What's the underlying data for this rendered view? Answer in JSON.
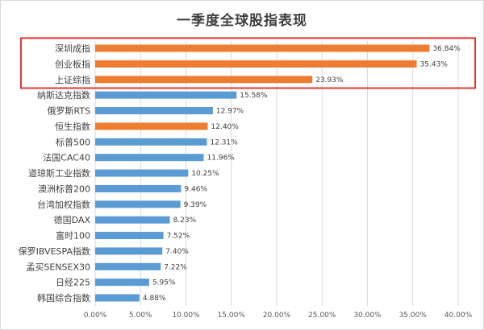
{
  "chart_data": {
    "type": "bar",
    "orientation": "horizontal",
    "title": "一季度全球股指表现",
    "categories": [
      "深圳成指",
      "创业板指",
      "上证综指",
      "纳斯达克指数",
      "俄罗斯RTS",
      "恒生指数",
      "标普500",
      "法国CAC40",
      "道琼斯工业指数",
      "澳洲标普200",
      "台湾加权指数",
      "德国DAX",
      "富时100",
      "保罗IBVESPA指数",
      "孟买SENSEX30",
      "日经225",
      "韩国综合指数"
    ],
    "values": [
      36.84,
      35.43,
      23.93,
      15.58,
      12.97,
      12.4,
      12.31,
      11.96,
      10.25,
      9.46,
      9.39,
      8.23,
      7.52,
      7.4,
      7.22,
      5.95,
      4.88
    ],
    "value_labels": [
      "36.84%",
      "35.43%",
      "23.93%",
      "15.58%",
      "12.97%",
      "12.40%",
      "12.31%",
      "11.96%",
      "10.25%",
      "9.46%",
      "9.39%",
      "8.23%",
      "7.52%",
      "7.40%",
      "7.22%",
      "5.95%",
      "4.88%"
    ],
    "highlight_color": "#ED7D31",
    "base_color": "#5B9BD5",
    "highlighted": [
      "深圳成指",
      "创业板指",
      "上证综指",
      "恒生指数"
    ],
    "xlim": [
      0,
      40
    ],
    "x_ticks": [
      0,
      5,
      10,
      15,
      20,
      25,
      30,
      35,
      40
    ],
    "x_tick_labels": [
      "0.00%",
      "5.00%",
      "10.00%",
      "15.00%",
      "20.00%",
      "25.00%",
      "30.00%",
      "35.00%",
      "40.00%"
    ],
    "grid": true,
    "legend": "none",
    "annotation_box": {
      "label": "top-3 highlight",
      "color": "#E53935",
      "covers": [
        "深圳成指",
        "创业板指",
        "上证综指"
      ]
    }
  }
}
